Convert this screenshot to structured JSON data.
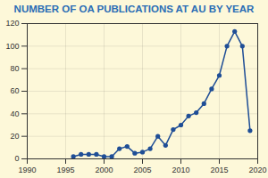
{
  "chart_data": {
    "type": "line",
    "title": "NUMBER OF OA PUBLICATIONS AT AU BY YEAR",
    "x": [
      1996,
      1997,
      1998,
      1999,
      2000,
      2001,
      2002,
      2003,
      2004,
      2005,
      2006,
      2007,
      2008,
      2009,
      2010,
      2011,
      2012,
      2013,
      2014,
      2015,
      2016,
      2017,
      2018,
      2019
    ],
    "values": [
      2,
      4,
      4,
      4,
      2,
      2,
      9,
      11,
      5,
      6,
      9,
      20,
      12,
      26,
      30,
      38,
      41,
      49,
      62,
      74,
      100,
      113,
      100,
      25
    ],
    "color": "#1f4e96",
    "marker": "circle",
    "xlim": [
      1990,
      2020
    ],
    "xticks": [
      1990,
      1995,
      2000,
      2005,
      2010,
      2015,
      2020
    ],
    "ylim": [
      0,
      120
    ],
    "yticks": [
      0,
      20,
      40,
      60,
      80,
      100,
      120
    ],
    "grid": true
  }
}
